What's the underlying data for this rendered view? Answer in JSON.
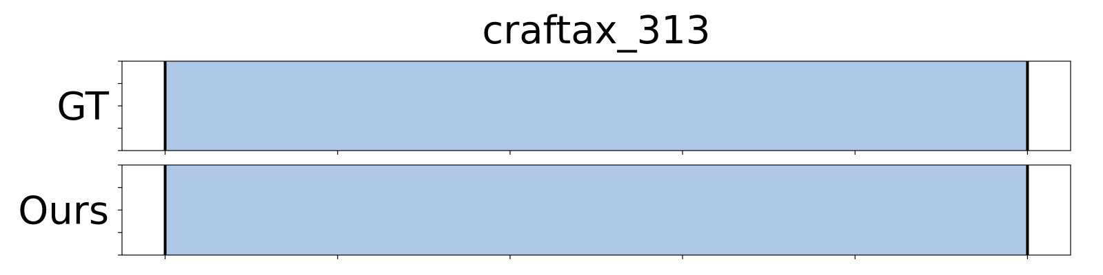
{
  "chart_data": {
    "type": "bar",
    "title": "craftax_313",
    "xlim": [
      0,
      1.1
    ],
    "x_ticks": [
      0.05,
      0.25,
      0.45,
      0.65,
      0.85,
      1.05
    ],
    "y_ticks": [
      0,
      0.25,
      0.5,
      0.75,
      1
    ],
    "rows": [
      {
        "label": "GT",
        "segments": [
          {
            "start": 0.05,
            "end": 1.05,
            "color": "#aec7e8"
          }
        ],
        "boundaries": [
          0.05,
          1.05
        ]
      },
      {
        "label": "Ours",
        "segments": [
          {
            "start": 0.05,
            "end": 1.05,
            "color": "#aec7e8"
          }
        ],
        "boundaries": [
          0.05,
          1.05
        ]
      }
    ],
    "grid": false,
    "legend": "none"
  }
}
